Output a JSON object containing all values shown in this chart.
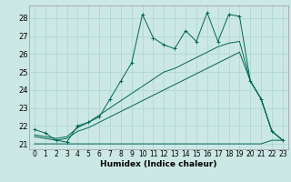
{
  "xlabel": "Humidex (Indice chaleur)",
  "bg_color": "#cce8e4",
  "grid_color": "#aad4d0",
  "line_color": "#006655",
  "xlim": [
    -0.5,
    23.5
  ],
  "ylim": [
    20.7,
    28.7
  ],
  "xticks": [
    0,
    1,
    2,
    3,
    4,
    5,
    6,
    7,
    8,
    9,
    10,
    11,
    12,
    13,
    14,
    15,
    16,
    17,
    18,
    19,
    20,
    21,
    22,
    23
  ],
  "yticks": [
    21,
    22,
    23,
    24,
    25,
    26,
    27,
    28
  ],
  "series1_x": [
    0,
    1,
    2,
    3,
    4,
    5,
    6,
    7,
    8,
    9,
    10,
    11,
    12,
    13,
    14,
    15,
    16,
    17,
    18,
    19,
    20,
    21,
    22,
    23
  ],
  "series1_y": [
    21.8,
    21.6,
    21.2,
    21.1,
    22.0,
    22.2,
    22.5,
    23.5,
    24.5,
    25.5,
    28.2,
    26.9,
    26.5,
    26.3,
    27.3,
    26.7,
    28.3,
    26.7,
    28.2,
    28.1,
    24.5,
    23.5,
    21.7,
    21.2
  ],
  "series2_x": [
    0,
    1,
    2,
    3,
    4,
    5,
    6,
    7,
    8,
    9,
    10,
    11,
    12,
    13,
    14,
    15,
    16,
    17,
    18,
    19,
    20,
    21,
    22,
    23
  ],
  "series2_y": [
    21.0,
    21.0,
    21.0,
    21.0,
    21.0,
    21.0,
    21.0,
    21.0,
    21.0,
    21.0,
    21.0,
    21.0,
    21.0,
    21.0,
    21.0,
    21.0,
    21.0,
    21.0,
    21.0,
    21.0,
    21.0,
    21.0,
    21.2,
    21.2
  ],
  "series3_x": [
    0,
    1,
    2,
    3,
    4,
    5,
    6,
    7,
    8,
    9,
    10,
    11,
    12,
    13,
    14,
    15,
    16,
    17,
    18,
    19,
    20,
    21,
    22,
    23
  ],
  "series3_y": [
    21.4,
    21.3,
    21.2,
    21.3,
    21.7,
    21.9,
    22.2,
    22.5,
    22.8,
    23.1,
    23.4,
    23.7,
    24.0,
    24.3,
    24.6,
    24.9,
    25.2,
    25.5,
    25.8,
    26.1,
    24.5,
    23.5,
    21.7,
    21.2
  ],
  "series4_x": [
    0,
    1,
    2,
    3,
    4,
    5,
    6,
    7,
    8,
    9,
    10,
    11,
    12,
    13,
    14,
    15,
    16,
    17,
    18,
    19,
    20,
    21,
    22,
    23
  ],
  "series4_y": [
    21.5,
    21.4,
    21.3,
    21.4,
    21.9,
    22.2,
    22.6,
    23.0,
    23.4,
    23.8,
    24.2,
    24.6,
    25.0,
    25.2,
    25.5,
    25.8,
    26.1,
    26.4,
    26.6,
    26.7,
    24.5,
    23.5,
    21.7,
    21.2
  ],
  "xlabel_fontsize": 6.5,
  "tick_fontsize": 5.5,
  "ylabel_fontsize": 6
}
